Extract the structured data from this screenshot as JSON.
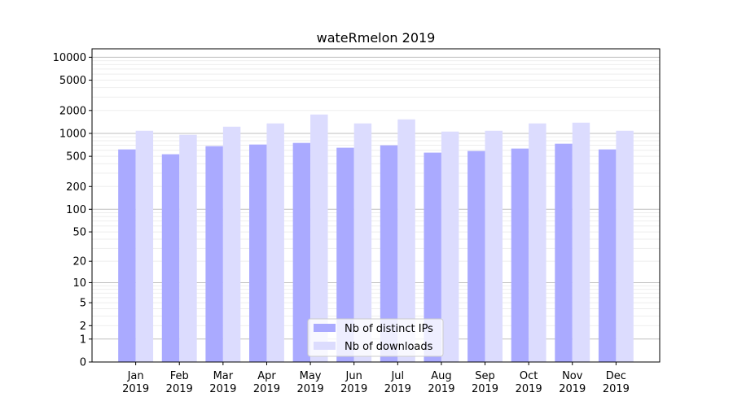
{
  "chart_data": {
    "type": "bar",
    "title": "wateRmelon 2019",
    "xlabel": "",
    "ylabel": "",
    "y_scale": "log(1+y)",
    "ylim": [
      0,
      12900
    ],
    "y_ticks": [
      0,
      1,
      2,
      5,
      10,
      20,
      50,
      100,
      200,
      500,
      1000,
      2000,
      5000,
      10000
    ],
    "y_tick_labels": [
      "0",
      "1",
      "2",
      "5",
      "10",
      "20",
      "50",
      "100",
      "200",
      "500",
      "1000",
      "2000",
      "5000",
      "10000"
    ],
    "grid": true,
    "legend_position": "bottom-center",
    "categories": [
      "Jan\n2019",
      "Feb\n2019",
      "Mar\n2019",
      "Apr\n2019",
      "May\n2019",
      "Jun\n2019",
      "Jul\n2019",
      "Aug\n2019",
      "Sep\n2019",
      "Oct\n2019",
      "Nov\n2019",
      "Dec\n2019"
    ],
    "series": [
      {
        "name": "Nb of distinct IPs",
        "color": "#aaaaff",
        "values": [
          616,
          532,
          680,
          714,
          750,
          648,
          697,
          559,
          587,
          632,
          732,
          616
        ]
      },
      {
        "name": "Nb of downloads",
        "color": "#dcdcfe",
        "values": [
          1083,
          959,
          1225,
          1352,
          1770,
          1352,
          1528,
          1057,
          1083,
          1352,
          1384,
          1083
        ]
      }
    ]
  }
}
